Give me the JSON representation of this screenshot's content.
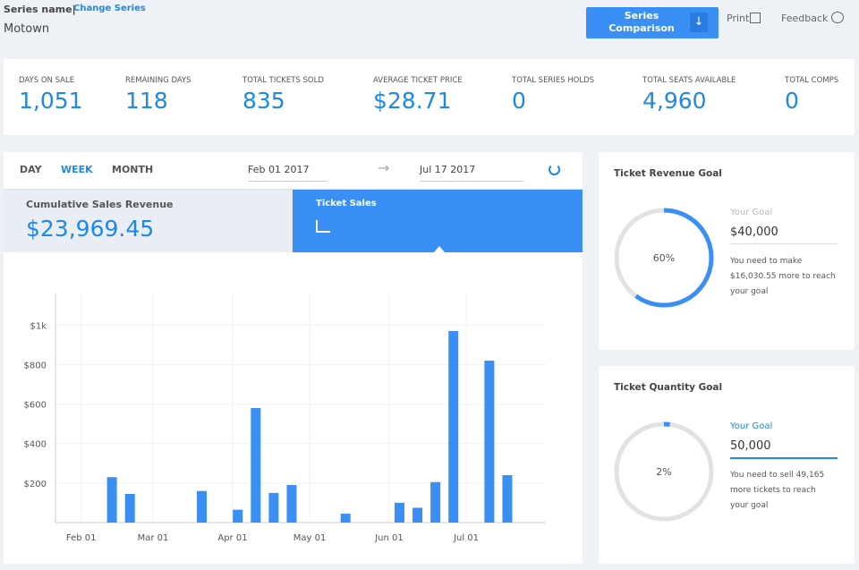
{
  "header": {
    "label": "Series name|",
    "link": "Change Series",
    "series": "Motown"
  },
  "toolbar": {
    "button": "Series Comparison",
    "print": "Print",
    "feedback": "Feedback"
  },
  "stats": [
    {
      "label": "DAYS ON SALE",
      "value": "1,051"
    },
    {
      "label": "REMAINING DAYS",
      "value": "118"
    },
    {
      "label": "TOTAL TICKETS SOLD",
      "value": "835"
    },
    {
      "label": "AVERAGE TICKET PRICE",
      "value": "$28.71"
    },
    {
      "label": "TOTAL SERIES HOLDS",
      "value": "0"
    },
    {
      "label": "TOTAL SEATS AVAILABLE",
      "value": "4,960"
    },
    {
      "label": "TOTAL COMPS",
      "value": "0"
    }
  ],
  "controls": {
    "tabs": [
      "DAY",
      "WEEK",
      "MONTH"
    ],
    "active_tab": 1,
    "start_date": "Feb 01 2017",
    "end_date": "Jul 17 2017"
  },
  "revenue": {
    "label": "Cumulative Sales Revenue",
    "value": "$23,969.45"
  },
  "sales_tab": "Ticket Sales",
  "chart_data": {
    "type": "bar",
    "color": "#3a8ff5",
    "grid": true,
    "x": [
      44,
      51,
      79,
      93,
      100,
      107,
      114,
      135,
      156,
      163,
      170,
      177,
      191,
      198
    ],
    "values": [
      230,
      145,
      160,
      65,
      580,
      150,
      190,
      45,
      100,
      75,
      205,
      970,
      820,
      240
    ],
    "xlim": [
      22,
      213
    ],
    "xticks": [
      {
        "value": 32,
        "label": "Feb 01"
      },
      {
        "value": 60,
        "label": "Mar 01"
      },
      {
        "value": 91,
        "label": "Apr 01"
      },
      {
        "value": 121,
        "label": "May 01"
      },
      {
        "value": 152,
        "label": "Jun 01"
      },
      {
        "value": 182,
        "label": "Jul 01"
      }
    ],
    "ylim": [
      0,
      1160
    ],
    "yticks": [
      {
        "value": 200,
        "label": "$200"
      },
      {
        "value": 400,
        "label": "$400"
      },
      {
        "value": 600,
        "label": "$600"
      },
      {
        "value": 800,
        "label": "$800"
      },
      {
        "value": 1000,
        "label": "$1k"
      }
    ]
  },
  "goals": [
    {
      "title": "Ticket Revenue Goal",
      "progress": {
        "value": 60,
        "label": "60%"
      },
      "goal_label": "Your Goal",
      "goal": "$40,000",
      "note": "You need to make $16,030.55 more to reach your goal",
      "active": false
    },
    {
      "title": "Ticket Quantity Goal",
      "progress": {
        "value": 2,
        "label": "2%"
      },
      "goal_label": "Your Goal",
      "goal": "50,000",
      "note": "You need to sell 49,165 more tickets to reach your goal",
      "active": true
    }
  ]
}
